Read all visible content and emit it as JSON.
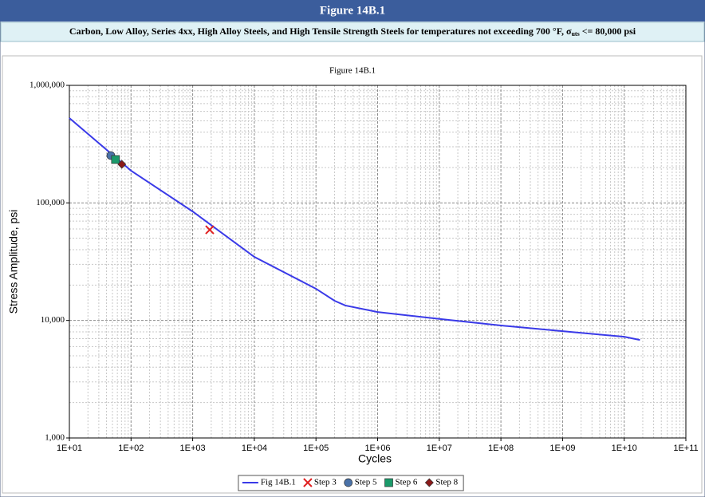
{
  "header": {
    "title": "Figure 14B.1",
    "subtitle": [
      "Carbon, Low Alloy, Series 4xx, High Alloy Steels, and High Tensile Strength Steels for temperatures not exceeding 700 °F, σ",
      "uts",
      " <= 80,000 psi"
    ]
  },
  "chart_data": {
    "type": "line",
    "title": "Figure 14B.1",
    "x_label": "Cycles",
    "y_label": "Stress Amplitude, psi",
    "xlog": true,
    "ylog": true,
    "grid": true,
    "minor_grid": true,
    "legend": "bottom",
    "xlim": [
      10,
      100000000000
    ],
    "xticks": [
      {
        "value": 10,
        "label": "1E+01"
      },
      {
        "value": 100,
        "label": "1E+02"
      },
      {
        "value": 1000,
        "label": "1E+03"
      },
      {
        "value": 10000,
        "label": "1E+04"
      },
      {
        "value": 100000,
        "label": "1E+05"
      },
      {
        "value": 1000000,
        "label": "1E+06"
      },
      {
        "value": 10000000,
        "label": "1E+07"
      },
      {
        "value": 100000000,
        "label": "1E+08"
      },
      {
        "value": 1000000000,
        "label": "1E+09"
      },
      {
        "value": 10000000000,
        "label": "1E+10"
      },
      {
        "value": 100000000000,
        "label": "1E+11"
      }
    ],
    "ylim": [
      1000,
      1000000
    ],
    "yticks": [
      {
        "value": 1000,
        "label": "1,000"
      },
      {
        "value": 10000,
        "label": "10,000"
      },
      {
        "value": 100000,
        "label": "100,000"
      },
      {
        "value": 1000000,
        "label": "1,000,000"
      }
    ],
    "series": [
      {
        "name": "Fig 14B.1",
        "color": "#3a3ae8",
        "marker": "line",
        "x": [
          10,
          100,
          1000,
          10000,
          100000,
          200000,
          300000,
          1000000,
          10000000,
          100000000,
          1000000000,
          10000000000,
          18000000000
        ],
        "values": [
          527000,
          188000,
          84500,
          34700,
          18600,
          14700,
          13400,
          11800,
          10300,
          9060,
          8110,
          7260,
          6820
        ]
      },
      {
        "name": "Step 3",
        "color": "#e02020",
        "marker": "x",
        "x": [
          1890
        ],
        "values": [
          59000
        ]
      },
      {
        "name": "Step 5",
        "color": "#4a72a8",
        "marker": "circle",
        "x": [
          47
        ],
        "values": [
          253000
        ]
      },
      {
        "name": "Step 6",
        "color": "#1a9a6a",
        "marker": "square",
        "x": [
          56
        ],
        "values": [
          234000
        ]
      },
      {
        "name": "Step 8",
        "color": "#8b1a1a",
        "marker": "diamond",
        "x": [
          71
        ],
        "values": [
          213000
        ]
      }
    ]
  }
}
